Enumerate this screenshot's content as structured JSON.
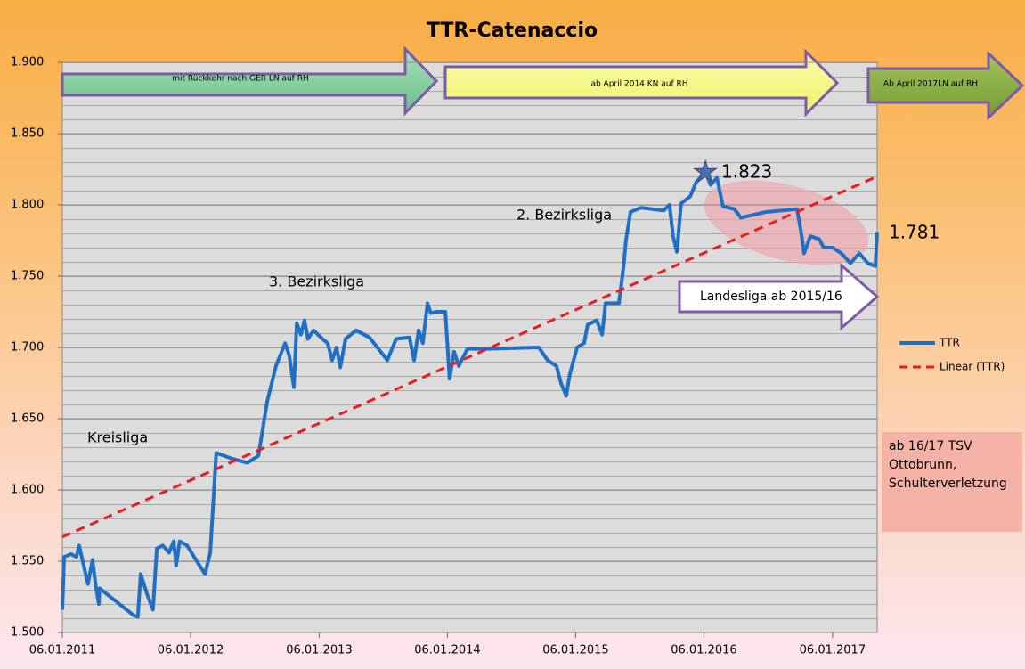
{
  "chart_data": {
    "type": "line",
    "title": "TTR-Catenaccio",
    "xlim": [
      "2011-01-06",
      "2017-05-13"
    ],
    "xticks": [
      {
        "value": "2011-01-06",
        "label": "06.01.2011"
      },
      {
        "value": "2012-01-06",
        "label": "06.01.2012"
      },
      {
        "value": "2013-01-06",
        "label": "06.01.2013"
      },
      {
        "value": "2014-01-06",
        "label": "06.01.2014"
      },
      {
        "value": "2015-01-06",
        "label": "06.01.2015"
      },
      {
        "value": "2016-01-06",
        "label": "06.01.2016"
      },
      {
        "value": "2017-01-06",
        "label": "06.01.2017"
      }
    ],
    "ylim": [
      1500,
      1900
    ],
    "yticks": [
      {
        "value": 1500,
        "label": "1.500"
      },
      {
        "value": 1550,
        "label": "1.550"
      },
      {
        "value": 1600,
        "label": "1.600"
      },
      {
        "value": 1650,
        "label": "1.650"
      },
      {
        "value": 1700,
        "label": "1.700"
      },
      {
        "value": 1750,
        "label": "1.750"
      },
      {
        "value": 1800,
        "label": "1.800"
      },
      {
        "value": 1850,
        "label": "1.850"
      },
      {
        "value": 1900,
        "label": "1.900"
      }
    ],
    "grid": true,
    "series": [
      {
        "name": "TTR",
        "color": "#1f6fc4",
        "dash": false,
        "x": [
          "2011-01-06",
          "2011-01-11",
          "2011-01-31",
          "2011-02-15",
          "2011-02-23",
          "2011-03-05",
          "2011-03-20",
          "2011-04-02",
          "2011-04-12",
          "2011-04-20",
          "2011-04-22",
          "2011-06-07",
          "2011-07-28",
          "2011-08-09",
          "2011-08-17",
          "2011-09-04",
          "2011-09-21",
          "2011-10-02",
          "2011-10-19",
          "2011-11-06",
          "2011-11-19",
          "2011-11-26",
          "2011-12-06",
          "2011-12-27",
          "2012-01-16",
          "2012-02-16",
          "2012-03-02",
          "2012-03-19",
          "2012-05-02",
          "2012-06-16",
          "2012-07-17",
          "2012-08-11",
          "2012-09-05",
          "2012-10-01",
          "2012-10-13",
          "2012-10-26",
          "2012-11-03",
          "2012-11-15",
          "2012-11-25",
          "2012-12-05",
          "2012-12-21",
          "2013-01-15",
          "2013-01-30",
          "2013-02-12",
          "2013-02-24",
          "2013-03-07",
          "2013-03-22",
          "2013-04-21",
          "2013-05-29",
          "2013-07-19",
          "2013-08-13",
          "2013-09-20",
          "2013-10-03",
          "2013-10-16",
          "2013-10-28",
          "2013-11-10",
          "2013-11-20",
          "2013-12-05",
          "2013-12-31",
          "2014-01-12",
          "2014-01-25",
          "2014-02-07",
          "2014-03-04",
          "2014-04-24",
          "2014-09-23",
          "2014-10-18",
          "2014-11-12",
          "2014-11-25",
          "2014-12-10",
          "2014-12-20",
          "2015-01-10",
          "2015-01-30",
          "2015-02-09",
          "2015-03-07",
          "2015-03-22",
          "2015-04-01",
          "2015-05-09",
          "2015-05-22",
          "2015-05-29",
          "2015-06-11",
          "2015-07-11",
          "2015-09-13",
          "2015-09-30",
          "2015-10-10",
          "2015-10-21",
          "2015-11-02",
          "2015-11-28",
          "2015-12-15",
          "2016-01-10",
          "2016-01-25",
          "2016-02-12",
          "2016-02-29",
          "2016-04-02",
          "2016-04-20",
          "2016-06-30",
          "2016-09-27",
          "2016-10-09",
          "2016-10-17",
          "2016-11-04",
          "2016-11-29",
          "2016-12-12",
          "2017-01-06",
          "2017-01-31",
          "2017-02-26",
          "2017-03-23",
          "2017-04-17",
          "2017-05-08",
          "2017-05-13"
        ],
        "values": [
          1516,
          1553,
          1555,
          1553,
          1561,
          1550,
          1534,
          1551,
          1531,
          1520,
          1531,
          1522,
          1512,
          1511,
          1541,
          1527,
          1516,
          1559,
          1561,
          1556,
          1564,
          1547,
          1564,
          1561,
          1553,
          1541,
          1556,
          1626,
          1622,
          1619,
          1624,
          1662,
          1687,
          1703,
          1694,
          1672,
          1717,
          1709,
          1719,
          1706,
          1712,
          1706,
          1703,
          1691,
          1700,
          1686,
          1706,
          1712,
          1707,
          1691,
          1706,
          1707,
          1691,
          1712,
          1703,
          1731,
          1724,
          1725,
          1725,
          1678,
          1697,
          1687,
          1699,
          1699,
          1700,
          1691,
          1687,
          1675,
          1666,
          1681,
          1700,
          1703,
          1716,
          1719,
          1709,
          1731,
          1731,
          1756,
          1775,
          1795,
          1798,
          1796,
          1800,
          1778,
          1767,
          1801,
          1806,
          1816,
          1823,
          1814,
          1819,
          1799,
          1797,
          1791,
          1795,
          1797,
          1780,
          1766,
          1778,
          1776,
          1770,
          1770,
          1766,
          1759,
          1766,
          1759,
          1757,
          1781
        ]
      },
      {
        "name": "Linear (TTR)",
        "color": "#ee1c1c",
        "dash": true,
        "x": [
          "2011-01-06",
          "2017-05-13"
        ],
        "values": [
          1567,
          1820
        ]
      }
    ],
    "legend": "right",
    "annotations": [
      "mit Rückkehr nach GER  LN auf RH",
      "ab April 2014 KN auf RH",
      "Ab April 2017LN auf RH",
      "Kreisliga",
      "3. Bezirksliga",
      "2. Bezirksliga",
      "1.823",
      "1.781",
      "Landesliga ab 2015/16",
      "ab 16/17 TSV Ottobrunn, Schulterverletzung"
    ]
  }
}
